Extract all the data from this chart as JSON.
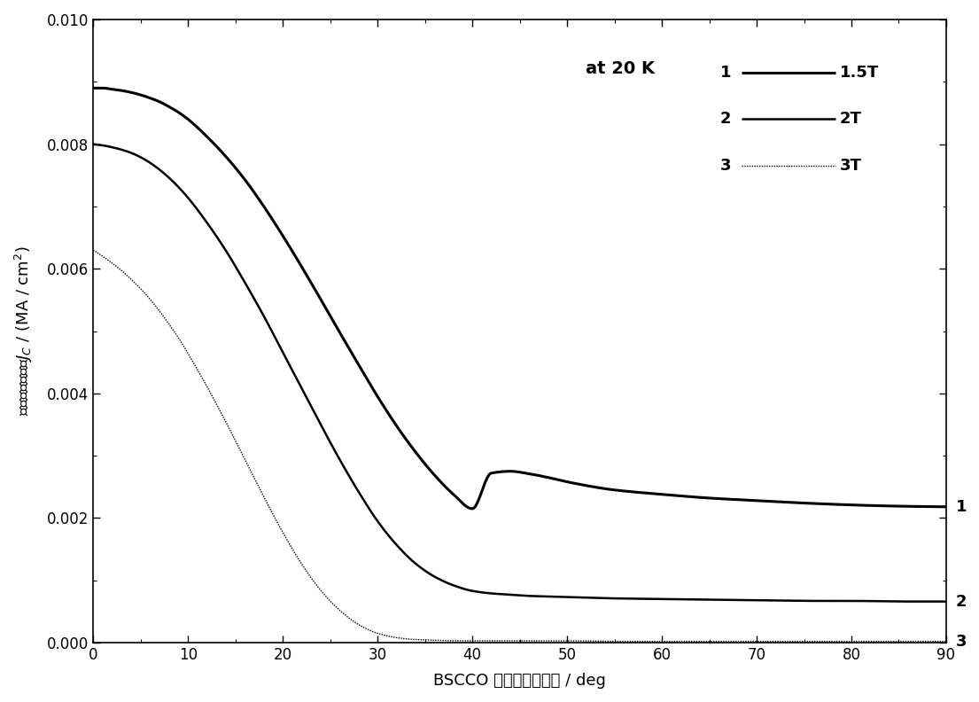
{
  "xlabel": "BSCCO 表面与磁场夹角 / deg",
  "ylabel": "临界电流密度，$J_C$ / (MA / cm²)",
  "annotation": "at 20 K",
  "xlim": [
    0,
    90
  ],
  "ylim": [
    0,
    0.01
  ],
  "xticks": [
    0,
    10,
    20,
    30,
    40,
    50,
    60,
    70,
    80,
    90
  ],
  "yticks": [
    0.0,
    0.002,
    0.004,
    0.006,
    0.008,
    0.01
  ],
  "background_color": "#ffffff",
  "curve1_x": [
    0,
    1,
    2,
    3,
    4,
    5,
    6,
    7,
    8,
    9,
    10,
    12,
    14,
    16,
    18,
    20,
    22,
    24,
    26,
    28,
    30,
    32,
    34,
    36,
    38,
    40,
    42,
    44,
    46,
    48,
    50,
    55,
    60,
    65,
    70,
    75,
    80,
    85,
    90
  ],
  "curve1_y": [
    0.0089,
    0.0089,
    0.00888,
    0.00886,
    0.00883,
    0.00879,
    0.00874,
    0.00868,
    0.0086,
    0.00851,
    0.0084,
    0.00812,
    0.0078,
    0.00743,
    0.007,
    0.00653,
    0.00603,
    0.00551,
    0.00498,
    0.00446,
    0.00395,
    0.00348,
    0.00306,
    0.00269,
    0.00238,
    0.00215,
    0.00272,
    0.00275,
    0.00271,
    0.00265,
    0.00258,
    0.00245,
    0.00238,
    0.00232,
    0.00228,
    0.00224,
    0.00221,
    0.00219,
    0.00218
  ],
  "curve2_x": [
    0,
    1,
    2,
    3,
    4,
    5,
    6,
    7,
    8,
    9,
    10,
    12,
    14,
    16,
    18,
    20,
    22,
    24,
    26,
    28,
    30,
    32,
    34,
    36,
    38,
    40,
    42,
    44,
    46,
    48,
    50,
    55,
    60,
    65,
    70,
    75,
    80,
    85,
    90
  ],
  "curve2_y": [
    0.008,
    0.00798,
    0.00795,
    0.00791,
    0.00786,
    0.00779,
    0.0077,
    0.00759,
    0.00746,
    0.00731,
    0.00714,
    0.00674,
    0.00629,
    0.00578,
    0.00524,
    0.00466,
    0.00408,
    0.0035,
    0.00294,
    0.00242,
    0.00195,
    0.00157,
    0.00127,
    0.00106,
    0.00092,
    0.00083,
    0.00079,
    0.00077,
    0.00075,
    0.00074,
    0.00073,
    0.00071,
    0.0007,
    0.00069,
    0.00068,
    0.00067,
    0.00067,
    0.00066,
    0.00066
  ],
  "curve3_x": [
    0,
    1,
    2,
    3,
    4,
    5,
    6,
    7,
    8,
    9,
    10,
    12,
    14,
    16,
    18,
    20,
    22,
    24,
    26,
    28,
    30,
    32,
    34,
    36,
    38,
    40,
    42,
    44,
    46,
    48,
    50,
    55,
    60,
    65,
    70,
    75,
    80,
    85,
    90
  ],
  "curve3_y": [
    0.0063,
    0.0062,
    0.00609,
    0.00597,
    0.00583,
    0.00568,
    0.00551,
    0.00532,
    0.00511,
    0.00489,
    0.00464,
    0.00411,
    0.00354,
    0.00294,
    0.00234,
    0.00177,
    0.00126,
    0.00084,
    0.00052,
    0.00029,
    0.00015,
    8e-05,
    5e-05,
    4e-05,
    3e-05,
    3e-05,
    3e-05,
    3e-05,
    3e-05,
    3e-05,
    3e-05,
    2e-05,
    2e-05,
    2e-05,
    2e-05,
    2e-05,
    2e-05,
    2e-05,
    2e-05
  ]
}
